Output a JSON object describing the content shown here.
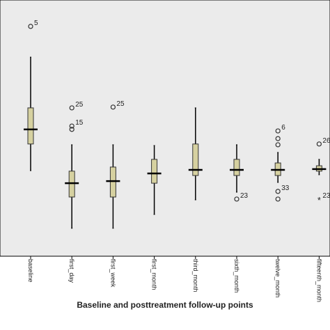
{
  "chart_data": {
    "type": "box",
    "xlabel": "Baseline and posttreatment follow-up points",
    "categories": [
      "baseline",
      "first_day",
      "first_week",
      "first_month",
      "third_month",
      "sixth_month",
      "twelve_month",
      "fifteenth_month"
    ],
    "ylim": [
      0,
      100
    ],
    "box_color": "#d6d1a0",
    "background": "#ebebeb",
    "boxes": [
      {
        "min": 33.4,
        "q1": 43.8,
        "median": 49.5,
        "q3": 57.9,
        "max": 77.7,
        "outliers": [
          {
            "value": 89.7,
            "marker": "circle",
            "label": "5"
          }
        ]
      },
      {
        "min": 10.9,
        "q1": 23.1,
        "median": 28.5,
        "q3": 33.2,
        "max": 43.5,
        "outliers": [
          {
            "value": 57.9,
            "marker": "circle",
            "label": "25"
          },
          {
            "value": 50.8,
            "marker": "circle",
            "label": "15"
          },
          {
            "value": 49.5,
            "marker": "circle"
          }
        ]
      },
      {
        "min": 10.9,
        "q1": 23.1,
        "median": 29.3,
        "q3": 34.8,
        "max": 43.5,
        "outliers": [
          {
            "value": 58.2,
            "marker": "circle",
            "label": "25"
          }
        ]
      },
      {
        "min": 16.3,
        "q1": 28.5,
        "median": 32.3,
        "q3": 37.8,
        "max": 43.2,
        "outliers": []
      },
      {
        "min": 22.0,
        "q1": 31.5,
        "median": 33.7,
        "q3": 43.8,
        "max": 57.9,
        "outliers": []
      },
      {
        "min": 25.0,
        "q1": 31.5,
        "median": 33.7,
        "q3": 37.8,
        "max": 43.5,
        "outliers": [
          {
            "value": 22.3,
            "marker": "circle",
            "label": "23"
          }
        ]
      },
      {
        "min": 28.8,
        "q1": 31.5,
        "median": 33.7,
        "q3": 36.4,
        "max": 40.5,
        "outliers": [
          {
            "value": 48.9,
            "marker": "circle",
            "label": "6"
          },
          {
            "value": 45.9,
            "marker": "circle"
          },
          {
            "value": 43.5,
            "marker": "circle"
          },
          {
            "value": 25.3,
            "marker": "circle",
            "label": "33"
          },
          {
            "value": 22.3,
            "marker": "circle"
          }
        ]
      },
      {
        "min": 31.8,
        "q1": 33.2,
        "median": 34.0,
        "q3": 35.3,
        "max": 37.8,
        "outliers": [
          {
            "value": 43.8,
            "marker": "circle",
            "label": "26"
          },
          {
            "value": 22.3,
            "marker": "star",
            "label": "23"
          }
        ]
      }
    ]
  }
}
